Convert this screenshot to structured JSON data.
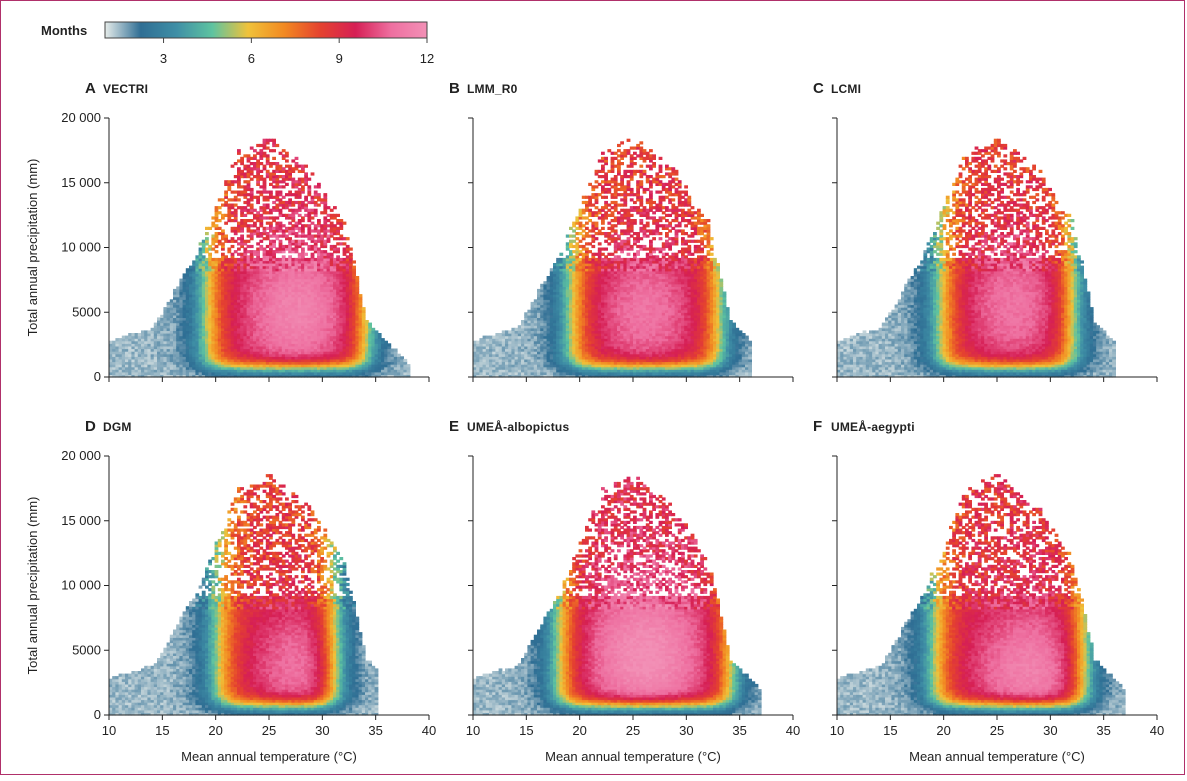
{
  "colorbar": {
    "label": "Months",
    "ticks": [
      "3",
      "6",
      "9",
      "12"
    ],
    "stops": [
      "#e6ecea",
      "#2f6e94",
      "#3f8fa6",
      "#5ec3a0",
      "#f0c23a",
      "#f28a22",
      "#e5432e",
      "#d61f55",
      "#ee6fa0",
      "#f290b6"
    ]
  },
  "chart_data": {
    "type": "heatmap",
    "xlabel": "Mean annual temperature (°C)",
    "ylabel": "Total annual precipitation (mm)",
    "xlim": [
      10,
      40
    ],
    "ylim": [
      0,
      20000
    ],
    "x_ticks": [
      "10",
      "15",
      "20",
      "25",
      "30",
      "35",
      "40"
    ],
    "y_ticks": [
      "0",
      "5000",
      "10 000",
      "15 000",
      "20 000"
    ],
    "value_label": "Months",
    "value_range": [
      1,
      12
    ],
    "panels": [
      {
        "letter": "A",
        "name": "VECTRI",
        "core": [
          27.5,
          5000
        ],
        "peak": 11.5,
        "onset_temp": 19,
        "upper_temp": 34,
        "upper_temp_cut": 38
      },
      {
        "letter": "B",
        "name": "LMM_R0",
        "core": [
          26,
          5000
        ],
        "peak": 11,
        "onset_temp": 19,
        "upper_temp": 33,
        "upper_temp_cut": 36
      },
      {
        "letter": "C",
        "name": "LCMI",
        "core": [
          26.5,
          5500
        ],
        "peak": 11,
        "onset_temp": 19.5,
        "upper_temp": 32,
        "upper_temp_cut": 36
      },
      {
        "letter": "D",
        "name": "DGM",
        "core": [
          28,
          3500
        ],
        "peak": 11,
        "onset_temp": 20,
        "upper_temp": 31,
        "upper_temp_cut": 35
      },
      {
        "letter": "E",
        "name": "UMEÅ-albopictus",
        "core": [
          26,
          4500
        ],
        "peak": 12,
        "onset_temp": 18,
        "upper_temp": 34,
        "upper_temp_cut": 37
      },
      {
        "letter": "F",
        "name": "UMEÅ-aegypti",
        "core": [
          28,
          3000
        ],
        "peak": 11.5,
        "onset_temp": 19,
        "upper_temp": 33,
        "upper_temp_cut": 37
      }
    ]
  }
}
